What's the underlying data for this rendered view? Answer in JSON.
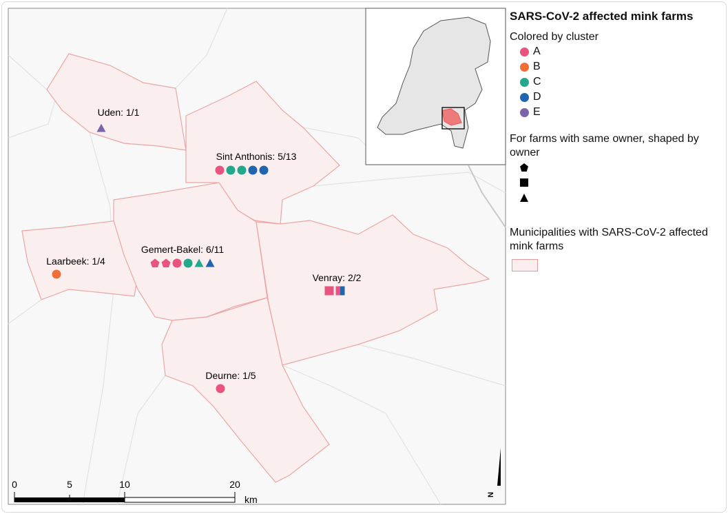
{
  "legend": {
    "title": "SARS-CoV-2 affected mink farms",
    "cluster_heading": "Colored by cluster",
    "clusters": [
      {
        "label": "A",
        "color": "#e8537f"
      },
      {
        "label": "B",
        "color": "#ef6f37"
      },
      {
        "label": "C",
        "color": "#22a98c"
      },
      {
        "label": "D",
        "color": "#2166ac"
      },
      {
        "label": "E",
        "color": "#7b65a9"
      }
    ],
    "owner_heading": "For farms with same owner, shaped by owner",
    "owner_shapes": [
      "pentagon",
      "square",
      "triangle"
    ],
    "municipality_heading": "Municipalities with SARS-CoV-2 affected mink farms",
    "municipality_fill": "#fbeeef",
    "municipality_stroke": "#e59a9a"
  },
  "municipalities": [
    {
      "label": "Uden: 1/1",
      "farms": [
        {
          "cluster": "E",
          "shape": "triangle"
        }
      ]
    },
    {
      "label": "Sint Anthonis: 5/13",
      "farms": [
        {
          "cluster": "A",
          "shape": "circle"
        },
        {
          "cluster": "C",
          "shape": "circle"
        },
        {
          "cluster": "C",
          "shape": "circle"
        },
        {
          "cluster": "D",
          "shape": "circle"
        },
        {
          "cluster": "D",
          "shape": "circle"
        }
      ]
    },
    {
      "label": "Laarbeek: 1/4",
      "farms": [
        {
          "cluster": "B",
          "shape": "circle"
        }
      ]
    },
    {
      "label": "Gemert-Bakel: 6/11",
      "farms": [
        {
          "cluster": "A",
          "shape": "pentagon"
        },
        {
          "cluster": "A",
          "shape": "pentagon"
        },
        {
          "cluster": "A",
          "shape": "circle"
        },
        {
          "cluster": "C",
          "shape": "circle"
        },
        {
          "cluster": "C",
          "shape": "triangle"
        },
        {
          "cluster": "D",
          "shape": "triangle"
        }
      ]
    },
    {
      "label": "Venray: 2/2",
      "farms": [
        {
          "cluster": "A",
          "shape": "square"
        },
        {
          "cluster": "A/D",
          "shape": "square"
        }
      ]
    },
    {
      "label": "Deurne: 1/5",
      "farms": [
        {
          "cluster": "A",
          "shape": "circle"
        }
      ]
    }
  ],
  "scalebar": {
    "ticks": [
      "0",
      "5",
      "10",
      "20"
    ],
    "unit": "km"
  },
  "north_arrow": "N"
}
